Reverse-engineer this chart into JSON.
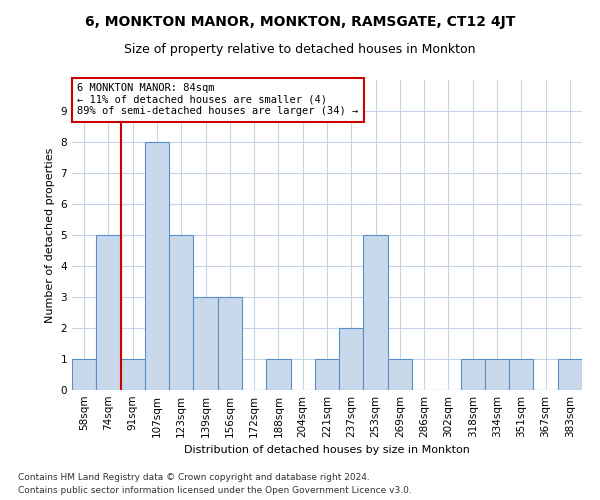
{
  "title": "6, MONKTON MANOR, MONKTON, RAMSGATE, CT12 4JT",
  "subtitle": "Size of property relative to detached houses in Monkton",
  "xlabel": "Distribution of detached houses by size in Monkton",
  "ylabel": "Number of detached properties",
  "categories": [
    "58sqm",
    "74sqm",
    "91sqm",
    "107sqm",
    "123sqm",
    "139sqm",
    "156sqm",
    "172sqm",
    "188sqm",
    "204sqm",
    "221sqm",
    "237sqm",
    "253sqm",
    "269sqm",
    "286sqm",
    "302sqm",
    "318sqm",
    "334sqm",
    "351sqm",
    "367sqm",
    "383sqm"
  ],
  "values": [
    1,
    5,
    1,
    8,
    5,
    3,
    3,
    0,
    1,
    0,
    1,
    2,
    5,
    1,
    0,
    0,
    1,
    1,
    1,
    0,
    1
  ],
  "bar_color": "#c9d9ec",
  "bar_edge_color": "#5b8fc9",
  "annotation_title": "6 MONKTON MANOR: 84sqm",
  "annotation_line1": "← 11% of detached houses are smaller (4)",
  "annotation_line2": "89% of semi-detached houses are larger (34) →",
  "annotation_box_color": "#ffffff",
  "annotation_box_edge_color": "#cc0000",
  "marker_line_color": "#cc0000",
  "ylim": [
    0,
    10
  ],
  "yticks": [
    0,
    1,
    2,
    3,
    4,
    5,
    6,
    7,
    8,
    9,
    10
  ],
  "background_color": "#ffffff",
  "grid_color": "#c8d4e8",
  "footer1": "Contains HM Land Registry data © Crown copyright and database right 2024.",
  "footer2": "Contains public sector information licensed under the Open Government Licence v3.0.",
  "title_fontsize": 10,
  "subtitle_fontsize": 9,
  "axis_fontsize": 8,
  "tick_fontsize": 7.5,
  "footer_fontsize": 6.5
}
